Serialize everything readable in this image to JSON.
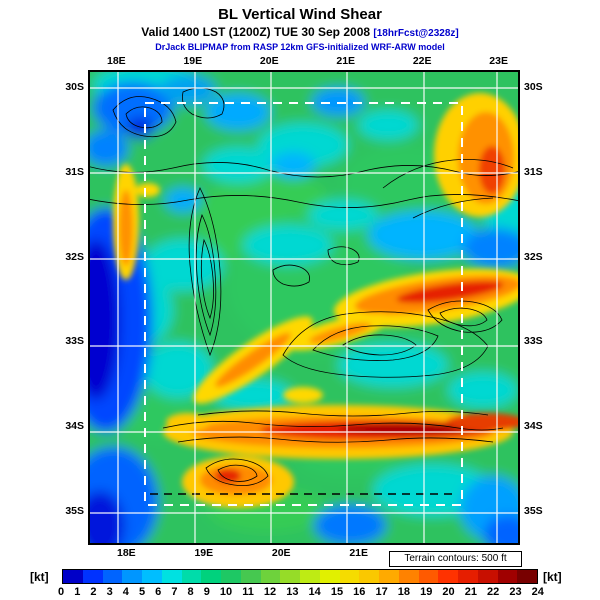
{
  "header": {
    "title": "BL Vertical Wind Shear",
    "valid_main": "Valid 1400 LST (1200Z) TUE 30 Sep 2008",
    "valid_fcst": "[18hrFcst@2328z]",
    "model_line": "DrJack BLIPMAP from RASP 12km GFS-initialized WRF-ARW model"
  },
  "map": {
    "top_lon_labels": [
      "18E",
      "19E",
      "20E",
      "21E",
      "22E",
      "23E"
    ],
    "bottom_lon_labels": [
      "18E",
      "19E",
      "20E",
      "21E"
    ],
    "left_lat_labels": [
      "30S",
      "31S",
      "32S",
      "33S",
      "34S",
      "35S"
    ],
    "right_lat_labels": [
      "30S",
      "31S",
      "32S",
      "33S",
      "34S",
      "35S"
    ],
    "terrain_note": "Terrain contours: 500 ft",
    "grid_color": "#ffffff",
    "domain_box_color": "#ffffff",
    "contour_color": "#000000"
  },
  "colorbar": {
    "unit_left": "[kt]",
    "unit_right": "[kt]",
    "min": 0,
    "max": 24,
    "tick_labels": [
      "0",
      "1",
      "2",
      "3",
      "4",
      "5",
      "6",
      "7",
      "8",
      "9",
      "10",
      "11",
      "12",
      "13",
      "14",
      "15",
      "16",
      "17",
      "18",
      "19",
      "20",
      "21",
      "22",
      "23",
      "24"
    ],
    "colors": [
      "#0000c8",
      "#0032ff",
      "#0064ff",
      "#0096ff",
      "#00beff",
      "#00e1e1",
      "#00dcaa",
      "#00d27d",
      "#1ec864",
      "#46c850",
      "#6ed23c",
      "#96dc28",
      "#beeb14",
      "#e1f000",
      "#f5dc00",
      "#fac800",
      "#ffaa00",
      "#ff8200",
      "#ff5a00",
      "#ff3200",
      "#e61e00",
      "#c80f00",
      "#a00000",
      "#780000"
    ]
  }
}
